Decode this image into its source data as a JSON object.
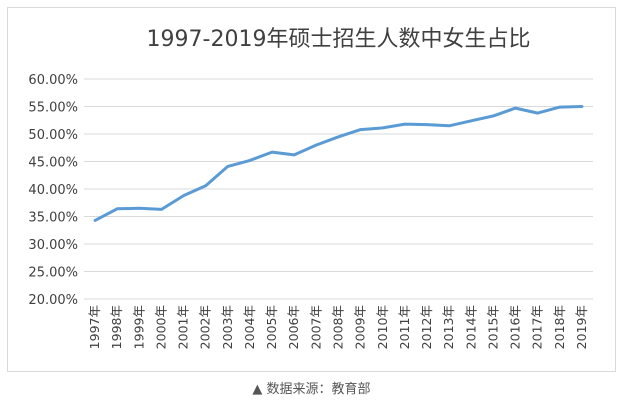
{
  "source_note": "▲ 数据来源：教育部",
  "chart_data": {
    "type": "line",
    "title": "1997-2019年硕士招生人数中女生占比",
    "xlabel": "",
    "ylabel": "",
    "categories": [
      "1997年",
      "1998年",
      "1999年",
      "2000年",
      "2001年",
      "2002年",
      "2003年",
      "2004年",
      "2005年",
      "2006年",
      "2007年",
      "2008年",
      "2009年",
      "2010年",
      "2011年",
      "2012年",
      "2013年",
      "2014年",
      "2015年",
      "2016年",
      "2017年",
      "2018年",
      "2019年"
    ],
    "series": [
      {
        "name": "",
        "values": [
          34.3,
          36.4,
          36.5,
          36.3,
          38.8,
          40.6,
          44.1,
          45.2,
          46.7,
          46.2,
          48.0,
          49.5,
          50.8,
          51.1,
          51.8,
          51.7,
          51.5,
          52.4,
          53.3,
          54.7,
          53.8,
          54.9,
          55.0
        ]
      }
    ],
    "ylim": [
      20,
      60
    ],
    "yticks": [
      "20.00%",
      "25.00%",
      "30.00%",
      "35.00%",
      "40.00%",
      "45.00%",
      "50.00%",
      "55.00%",
      "60.00%"
    ],
    "grid": true,
    "legend": "none",
    "colors": {
      "line": "#5b9bd5",
      "grid": "#d9d9d9",
      "text": "#404040"
    }
  }
}
